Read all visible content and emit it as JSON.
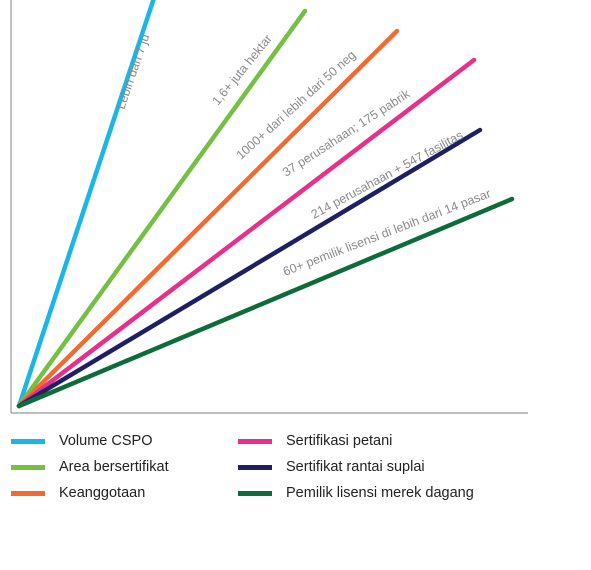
{
  "chart_data": {
    "type": "line",
    "title": "",
    "xlabel": "",
    "ylabel": "",
    "grid": false,
    "legend_position": "bottom",
    "series": [
      {
        "name": "Volume CSPO",
        "color": "#1ab6e8",
        "annotation": "Lebih dari 7 ju",
        "x": [
          0,
          1
        ],
        "y": [
          0,
          1
        ],
        "angle_deg": 71
      },
      {
        "name": "Area bersertifikat",
        "color": "#74c043",
        "annotation": "1,6+ juta hektar",
        "x": [
          0,
          1
        ],
        "y": [
          0,
          1
        ],
        "angle_deg": 51
      },
      {
        "name": "Keanggotaan",
        "color": "#f26a30",
        "annotation": "1000+ dari lebih dari 50 neg",
        "x": [
          0,
          1
        ],
        "y": [
          0,
          1
        ],
        "angle_deg": 42
      },
      {
        "name": "Sertifikasi petani",
        "color": "#e8308a",
        "annotation": "37 perusahaan; 175 pabrik",
        "x": [
          0,
          1
        ],
        "y": [
          0,
          1
        ],
        "angle_deg": 33
      },
      {
        "name": "Sertifikat rantai suplai",
        "color": "#1f2063",
        "annotation": "214 perusahaan + 547 fasilitas",
        "x": [
          0,
          1
        ],
        "y": [
          0,
          1
        ],
        "angle_deg": 28.5
      },
      {
        "name": "Pemilik lisensi merek dagang",
        "color": "#0e6b3a",
        "annotation": "60+ pemilik lisensi di lebih dari 14 pasar",
        "x": [
          0,
          1
        ],
        "y": [
          0,
          1
        ],
        "angle_deg": 21
      }
    ]
  }
}
